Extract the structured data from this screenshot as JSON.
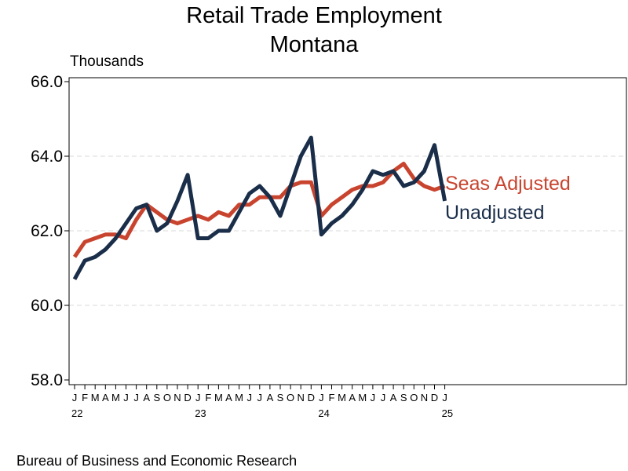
{
  "header": {
    "title_line1": "Retail Trade Employment",
    "title_line2": "Montana",
    "units": "Thousands"
  },
  "footer": {
    "source": "Bureau of Business and Economic Research"
  },
  "chart_data": {
    "type": "line",
    "title": "Retail Trade Employment Montana",
    "ylabel": "Thousands",
    "xlabel": "",
    "ylim": [
      58,
      66
    ],
    "yticks": [
      "66.0",
      "64.0",
      "62.0",
      "60.0",
      "58.0"
    ],
    "ytick_values": [
      66,
      64,
      62,
      60,
      58
    ],
    "grid": "horizontal dashed",
    "legend": "inline labels at right end of lines",
    "x": [
      "2022-01",
      "2022-02",
      "2022-03",
      "2022-04",
      "2022-05",
      "2022-06",
      "2022-07",
      "2022-08",
      "2022-09",
      "2022-10",
      "2022-11",
      "2022-12",
      "2023-01",
      "2023-02",
      "2023-03",
      "2023-04",
      "2023-05",
      "2023-06",
      "2023-07",
      "2023-08",
      "2023-09",
      "2023-10",
      "2023-11",
      "2023-12",
      "2024-01",
      "2024-02",
      "2024-03",
      "2024-04",
      "2024-05",
      "2024-06",
      "2024-07",
      "2024-08",
      "2024-09",
      "2024-10",
      "2024-11",
      "2024-12",
      "2025-01"
    ],
    "month_ticks": [
      "J",
      "F",
      "M",
      "A",
      "M",
      "J",
      "J",
      "A",
      "S",
      "O",
      "N",
      "D",
      "J",
      "F",
      "M",
      "A",
      "M",
      "J",
      "J",
      "A",
      "S",
      "O",
      "N",
      "D",
      "J",
      "F",
      "M",
      "A",
      "M",
      "J",
      "J",
      "A",
      "S",
      "O",
      "N",
      "D",
      "J"
    ],
    "year_ticks": [
      {
        "index": 0,
        "label": "22"
      },
      {
        "index": 12,
        "label": "23"
      },
      {
        "index": 24,
        "label": "24"
      },
      {
        "index": 36,
        "label": "25"
      }
    ],
    "series": [
      {
        "name": "Seas Adjusted",
        "color": "#c8442f",
        "values": [
          61.3,
          61.7,
          61.8,
          61.9,
          61.9,
          61.8,
          62.3,
          62.7,
          62.5,
          62.3,
          62.2,
          62.3,
          62.4,
          62.3,
          62.5,
          62.4,
          62.7,
          62.7,
          62.9,
          62.9,
          62.9,
          63.2,
          63.3,
          63.3,
          62.4,
          62.7,
          62.9,
          63.1,
          63.2,
          63.2,
          63.3,
          63.6,
          63.8,
          63.4,
          63.2,
          63.1,
          63.2
        ]
      },
      {
        "name": "Unadjusted",
        "color": "#1a2e4a",
        "values": [
          60.7,
          61.2,
          61.3,
          61.5,
          61.8,
          62.2,
          62.6,
          62.7,
          62.0,
          62.2,
          62.8,
          63.5,
          61.8,
          61.8,
          62.0,
          62.0,
          62.5,
          63.0,
          63.2,
          62.9,
          62.4,
          63.2,
          64.0,
          64.5,
          61.9,
          62.2,
          62.4,
          62.7,
          63.1,
          63.6,
          63.5,
          63.6,
          63.2,
          63.3,
          63.6,
          64.3,
          62.8
        ]
      }
    ]
  }
}
